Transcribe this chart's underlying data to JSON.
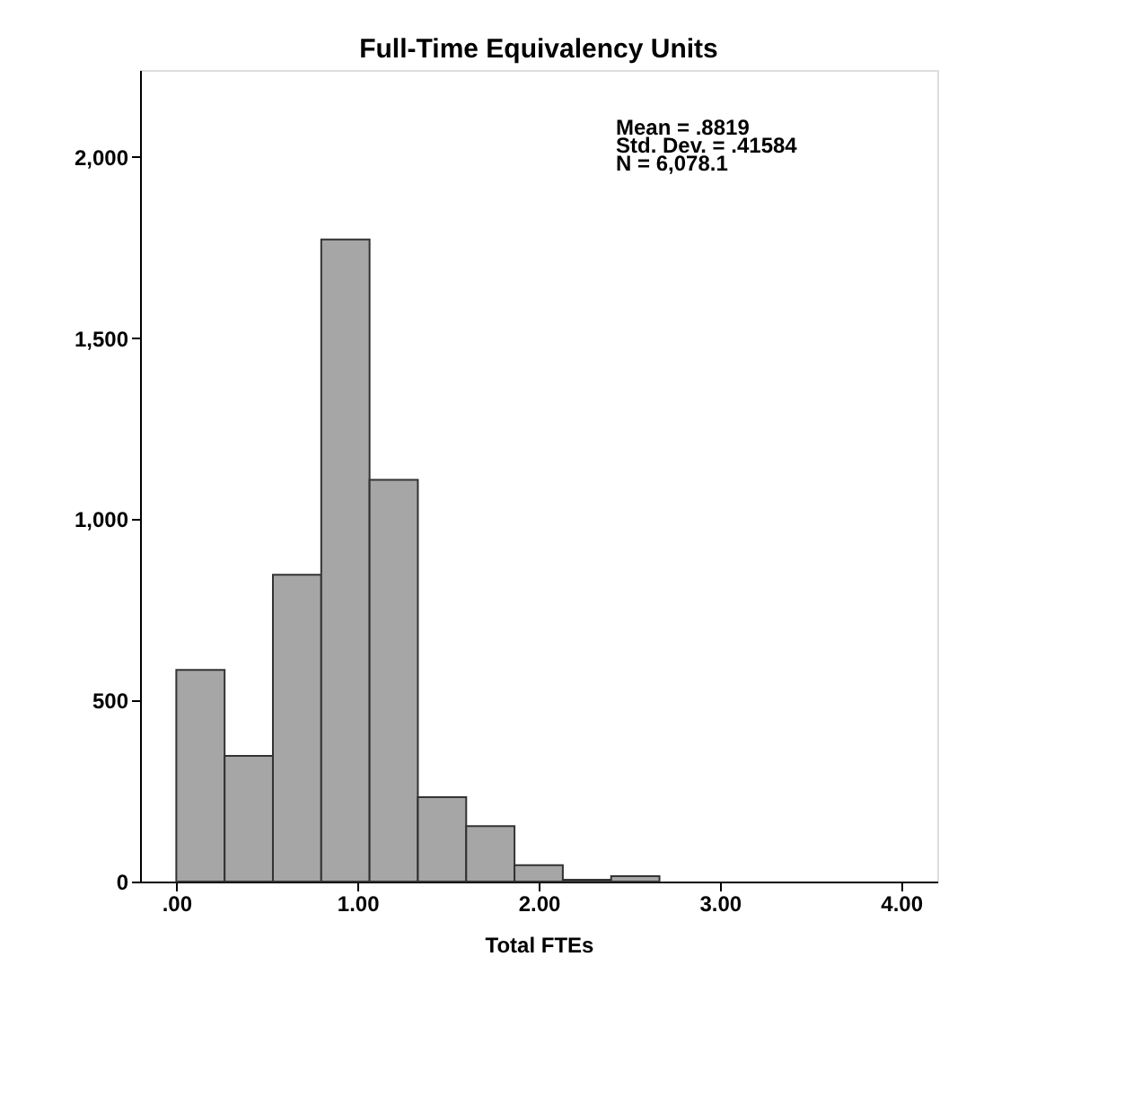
{
  "chart_data": {
    "type": "histogram",
    "title": "Full-Time Equivalency Units",
    "xlabel": "Total FTEs",
    "bins": [
      0,
      0.2667,
      0.5333,
      0.8,
      1.0667,
      1.3333,
      1.6,
      1.8667,
      2.1333,
      2.4,
      2.6667
    ],
    "values": [
      584,
      347,
      847,
      1772,
      1109,
      233,
      153,
      45,
      5,
      15
    ],
    "color": "#a6a6a6",
    "xlim": [
      -0.2,
      4.2
    ],
    "xticks": [
      {
        "value": 0,
        "label": ".00"
      },
      {
        "value": 1,
        "label": "1.00"
      },
      {
        "value": 2,
        "label": "2.00"
      },
      {
        "value": 3,
        "label": "3.00"
      },
      {
        "value": 4,
        "label": "4.00"
      }
    ],
    "ylim": [
      0,
      2240
    ],
    "yticks": [
      {
        "value": 0,
        "label": "0"
      },
      {
        "value": 500,
        "label": "500"
      },
      {
        "value": 1000,
        "label": "1,000"
      },
      {
        "value": 1500,
        "label": "1,500"
      },
      {
        "value": 2000,
        "label": "2,000"
      }
    ],
    "annotations": [
      "Mean = .8819",
      "Std. Dev. = .41584",
      "N = 6,078.1"
    ],
    "grid": false
  }
}
